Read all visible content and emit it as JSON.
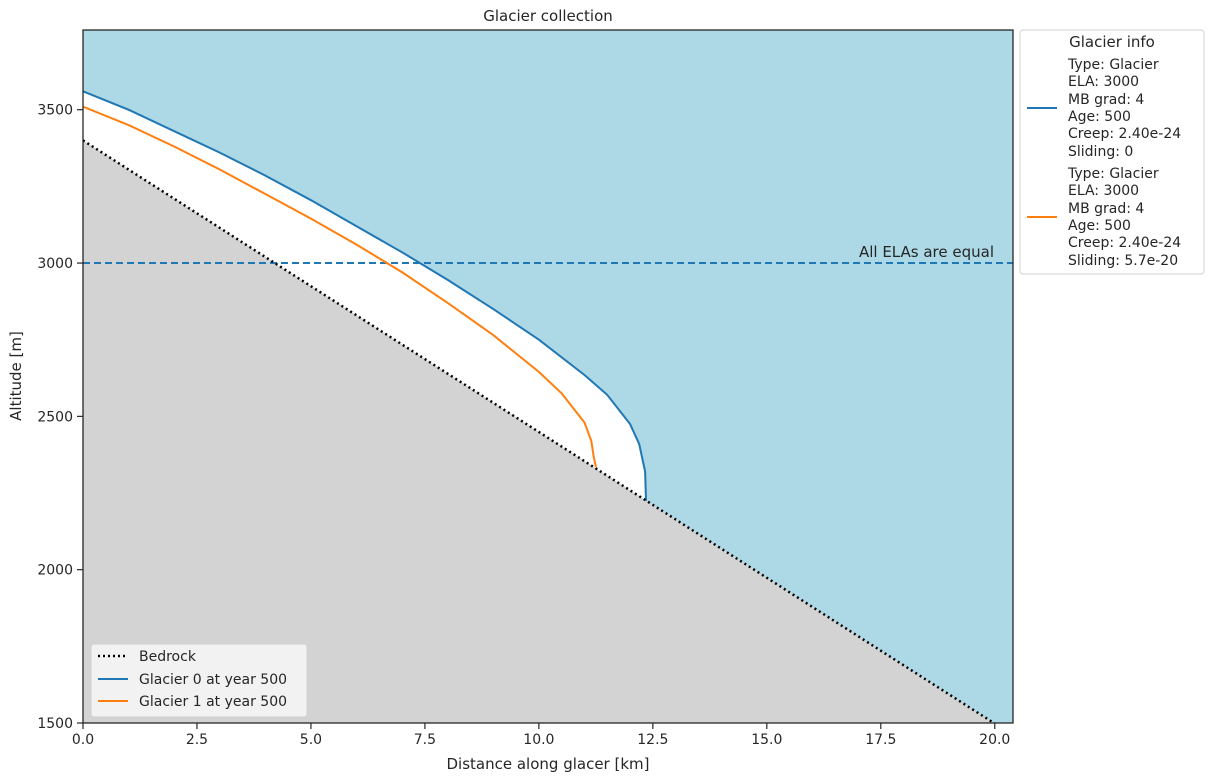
{
  "chart_data": {
    "type": "line",
    "title": "Glacier collection",
    "xlabel": "Distance along glacer [km]",
    "ylabel": "Altitude [m]",
    "xlim": [
      0,
      20.4
    ],
    "ylim": [
      1500,
      3760
    ],
    "xticks": [
      0.0,
      2.5,
      5.0,
      7.5,
      10.0,
      12.5,
      15.0,
      17.5,
      20.0
    ],
    "xtick_labels": [
      "0.0",
      "2.5",
      "5.0",
      "7.5",
      "10.0",
      "12.5",
      "15.0",
      "17.5",
      "20.0"
    ],
    "yticks": [
      1500,
      2000,
      2500,
      3000,
      3500
    ],
    "ytick_labels": [
      "1500",
      "2000",
      "2500",
      "3000",
      "3500"
    ],
    "grid": false,
    "colors": {
      "sky": "#add8e6",
      "bedrock_fill": "#d3d3d3",
      "bedrock_line": "#000000",
      "glacier0": "#1f77b4",
      "glacier1": "#ff7f0e",
      "ela_line": "#1f77b4",
      "ice": "#ffffff"
    },
    "bedrock": {
      "name": "Bedrock",
      "x": [
        0,
        20.4
      ],
      "y": [
        3400,
        1460
      ]
    },
    "series": [
      {
        "name": "Glacier 0 at year 500",
        "x": [
          0,
          1,
          2,
          3,
          4,
          5,
          6,
          7,
          8,
          9,
          10,
          11,
          11.5,
          12.0,
          12.2,
          12.33,
          12.35
        ],
        "y": [
          3560,
          3500,
          3430,
          3360,
          3285,
          3205,
          3120,
          3035,
          2945,
          2850,
          2750,
          2635,
          2570,
          2475,
          2410,
          2320,
          2225
        ]
      },
      {
        "name": "Glacier 1 at year 500",
        "x": [
          0,
          1,
          2,
          3,
          4,
          5,
          6,
          7,
          8,
          9,
          10,
          10.5,
          11.0,
          11.15,
          11.2,
          11.25
        ],
        "y": [
          3510,
          3450,
          3380,
          3305,
          3225,
          3145,
          3060,
          2970,
          2870,
          2765,
          2645,
          2575,
          2480,
          2420,
          2370,
          2335
        ]
      }
    ],
    "ela": {
      "y": 3000,
      "label": "All ELAs are equal"
    },
    "legend_lower": {
      "placement": "lower-left",
      "entries": [
        "Bedrock",
        "Glacier 0 at year 500",
        "Glacier 1 at year 500"
      ]
    },
    "legend_info": {
      "placement": "outside-upper-right",
      "title": "Glacier info",
      "entries": [
        {
          "lines": [
            "Type: Glacier",
            "ELA: 3000",
            "MB grad: 4",
            "Age: 500",
            "Creep: 2.40e-24",
            "Sliding: 0"
          ]
        },
        {
          "lines": [
            "Type: Glacier",
            "ELA: 3000",
            "MB grad: 4",
            "Age: 500",
            "Creep: 2.40e-24",
            "Sliding: 5.7e-20"
          ]
        }
      ]
    }
  }
}
